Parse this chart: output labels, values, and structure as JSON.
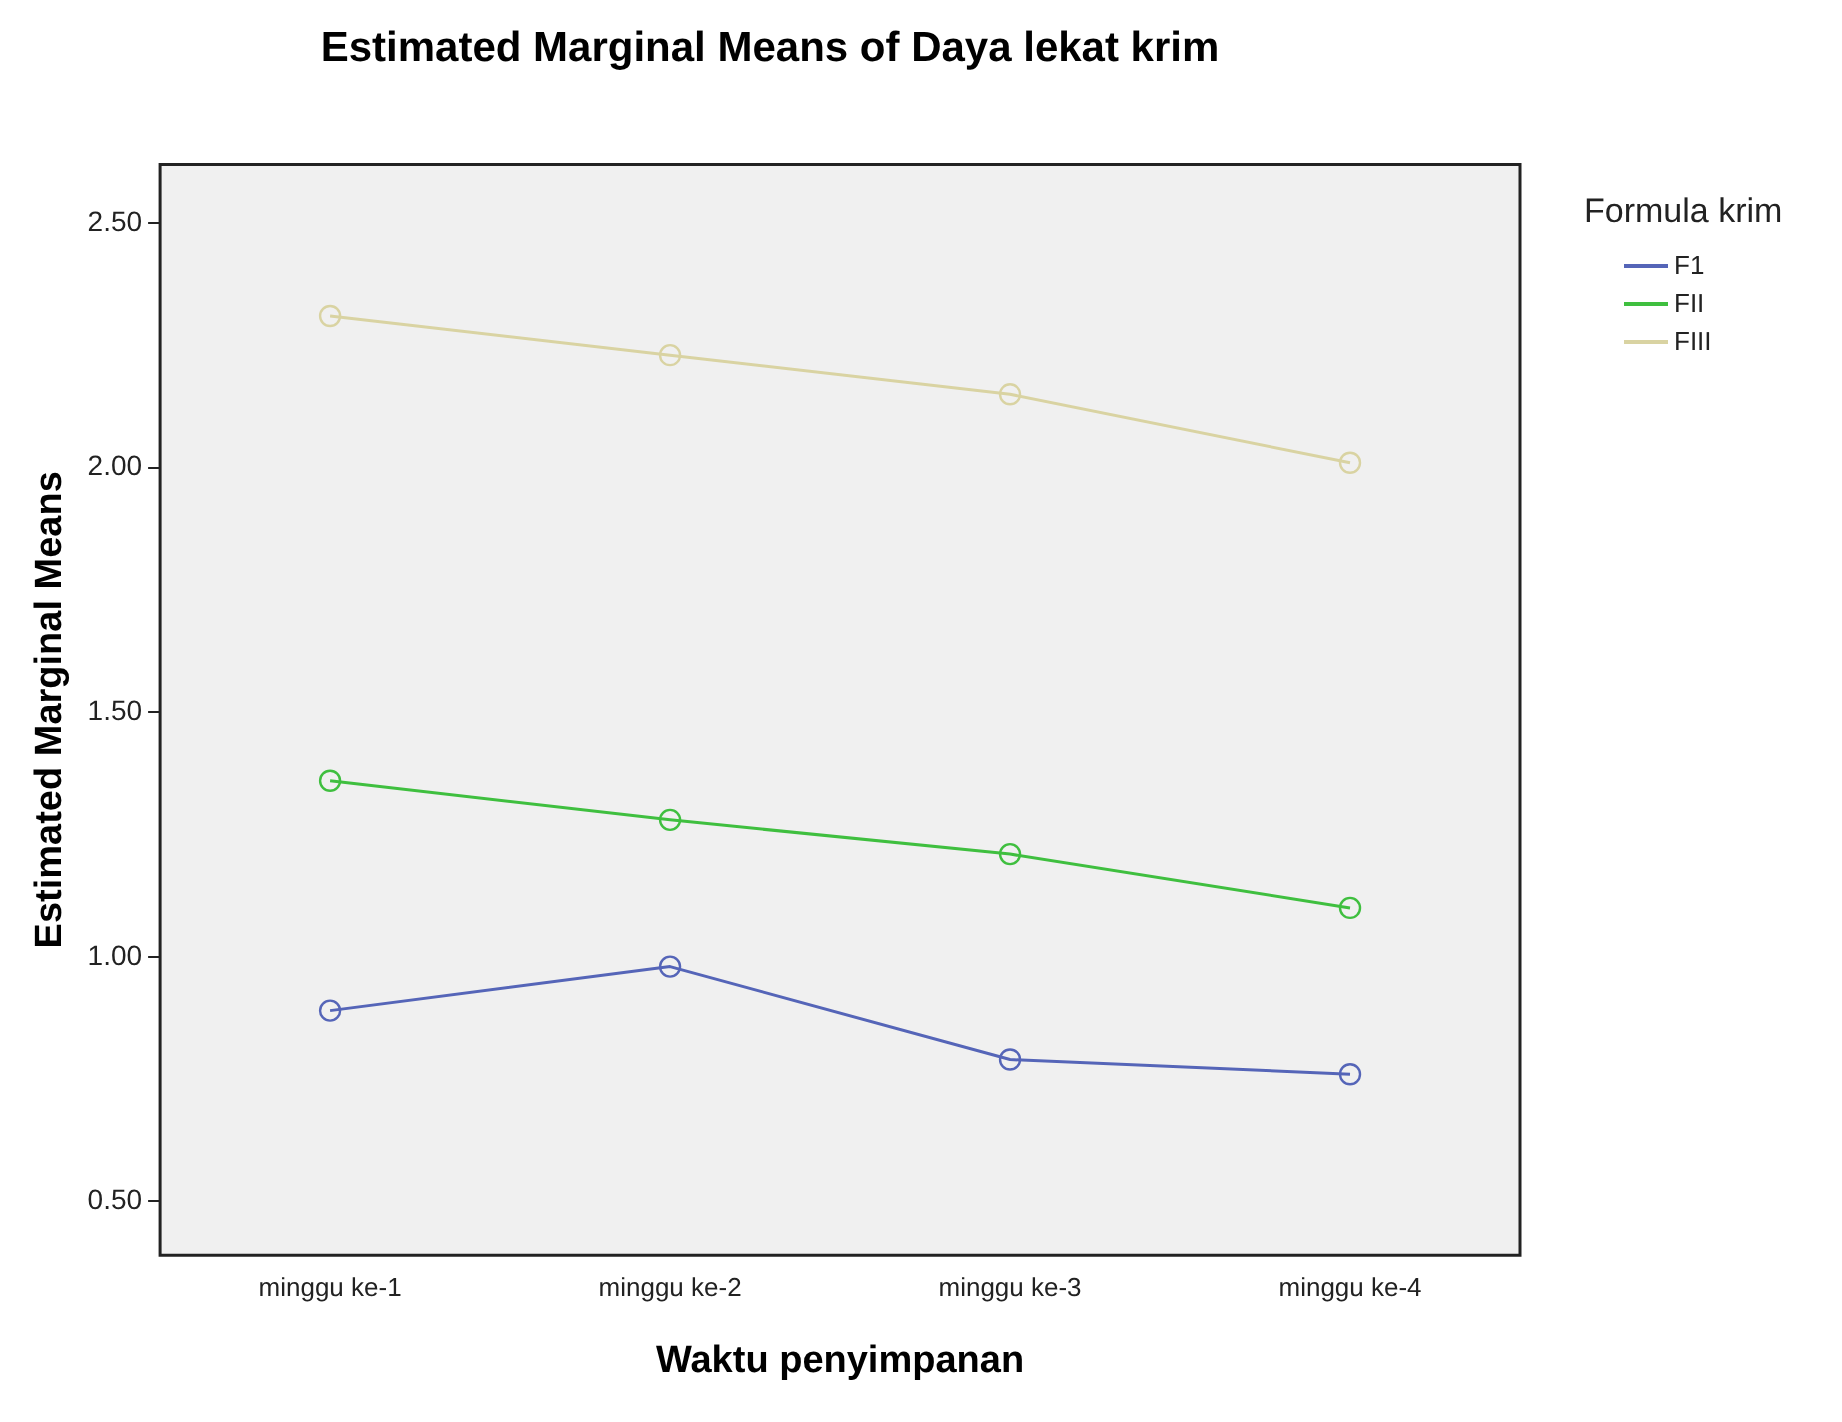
{
  "chart_data": {
    "type": "line",
    "title": "Estimated Marginal Means of Daya lekat krim",
    "xlabel": "Waktu penyimpanan",
    "ylabel": "Estimated Marginal Means",
    "legend_title": "Formula krim",
    "categories": [
      "minggu ke-1",
      "minggu ke-2",
      "minggu ke-3",
      "minggu ke-4"
    ],
    "series": [
      {
        "name": "F1",
        "color": "#5565b8",
        "values": [
          0.89,
          0.98,
          0.79,
          0.76
        ]
      },
      {
        "name": "FII",
        "color": "#3fbf3f",
        "values": [
          1.36,
          1.28,
          1.21,
          1.1
        ]
      },
      {
        "name": "FIII",
        "color": "#d9d3a2",
        "values": [
          2.31,
          2.23,
          2.15,
          2.01
        ]
      }
    ],
    "ylim": [
      0.39,
      2.62
    ],
    "yticks": [
      {
        "value": 0.5,
        "label": "0.50"
      },
      {
        "value": 1,
        "label": "1.00"
      },
      {
        "value": 1.5,
        "label": "1.50"
      },
      {
        "value": 2,
        "label": "2.00"
      },
      {
        "value": 2.5,
        "label": "2.50"
      }
    ],
    "grid": false,
    "legend": "top right",
    "marker": "circle",
    "line_style": "solid"
  }
}
